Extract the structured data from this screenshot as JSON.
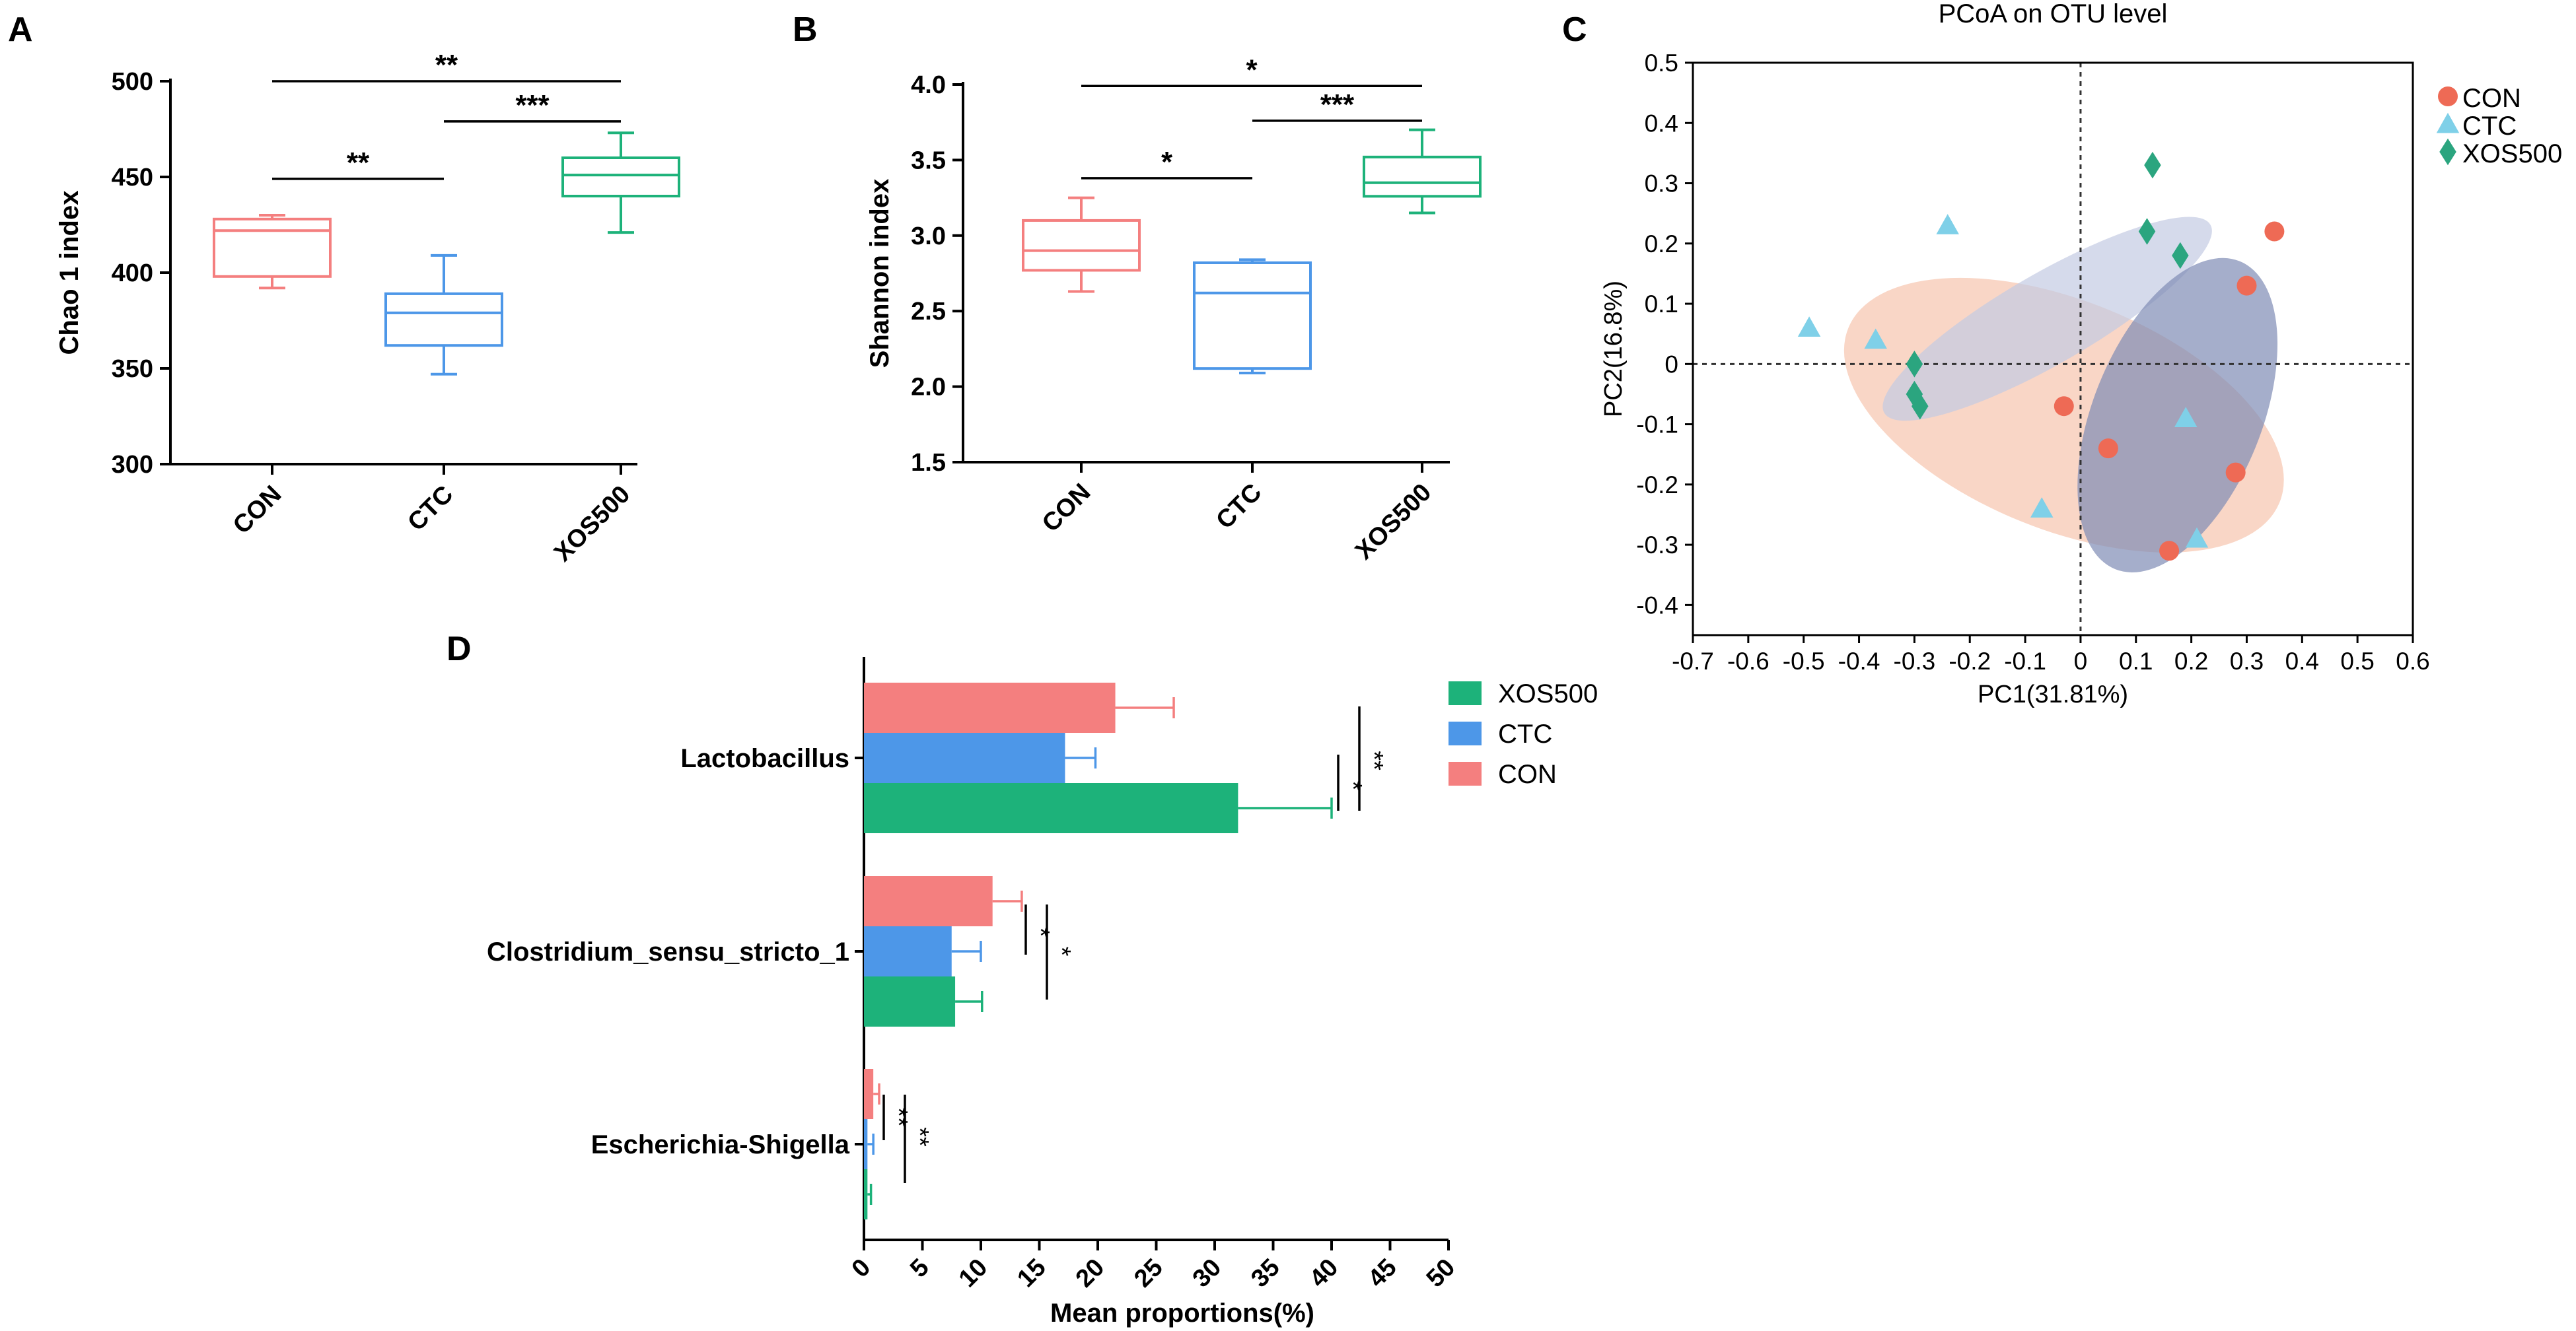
{
  "colors": {
    "con": "#F47F7F",
    "ctc": "#4D97E8",
    "xos": "#1DB27A",
    "con_point": "#EE6A55",
    "ctc_point": "#7FD0E8",
    "xos_point": "#2BA57F",
    "con_ellipse": "#F6C4AE",
    "ctc_ellipse": "#C3CAE2",
    "xos_ellipse": "#7F8CB5",
    "axis": "#000000"
  },
  "chart_data": [
    {
      "panel": "A",
      "type": "box",
      "title": "",
      "ylabel": "Chao 1 index",
      "categories": [
        "CON",
        "CTC",
        "XOS500"
      ],
      "ylim": [
        300,
        500
      ],
      "yticks": [
        300,
        350,
        400,
        450,
        500
      ],
      "boxes": [
        {
          "group": "CON",
          "min": 392,
          "q1": 398,
          "median": 422,
          "q3": 428,
          "max": 430
        },
        {
          "group": "CTC",
          "min": 347,
          "q1": 362,
          "median": 379,
          "q3": 389,
          "max": 409
        },
        {
          "group": "XOS500",
          "min": 421,
          "q1": 440,
          "median": 451,
          "q3": 460,
          "max": 473
        }
      ],
      "significance": [
        {
          "from": "CON",
          "to": "CTC",
          "label": "**",
          "y": 449
        },
        {
          "from": "CTC",
          "to": "XOS500",
          "label": "***",
          "y": 479
        },
        {
          "from": "CON",
          "to": "XOS500",
          "label": "**",
          "y": 500
        }
      ]
    },
    {
      "panel": "B",
      "type": "box",
      "title": "",
      "ylabel": "Shannon index",
      "categories": [
        "CON",
        "CTC",
        "XOS500"
      ],
      "ylim": [
        1.5,
        4.0
      ],
      "yticks": [
        "1.5",
        "2.0",
        "2.5",
        "3.0",
        "3.5",
        "4.0"
      ],
      "boxes": [
        {
          "group": "CON",
          "min": 2.63,
          "q1": 2.77,
          "median": 2.9,
          "q3": 3.1,
          "max": 3.25
        },
        {
          "group": "CTC",
          "min": 2.09,
          "q1": 2.12,
          "median": 2.62,
          "q3": 2.82,
          "max": 2.84
        },
        {
          "group": "XOS500",
          "min": 3.15,
          "q1": 3.26,
          "median": 3.35,
          "q3": 3.52,
          "max": 3.7
        }
      ],
      "significance": [
        {
          "from": "CON",
          "to": "CTC",
          "label": "*",
          "y": 3.38
        },
        {
          "from": "CTC",
          "to": "XOS500",
          "label": "***",
          "y": 3.76
        },
        {
          "from": "CON",
          "to": "XOS500",
          "label": "*",
          "y": 3.99
        }
      ]
    },
    {
      "panel": "C",
      "type": "scatter",
      "title": "PCoA on OTU level",
      "xlabel": "PC1(31.81%)",
      "ylabel": "PC2(16.8%)",
      "xlim": [
        -0.7,
        0.6
      ],
      "ylim": [
        -0.45,
        0.5
      ],
      "xticks": [
        "-0.7",
        "-0.6",
        "-0.5",
        "-0.4",
        "-0.3",
        "-0.2",
        "-0.1",
        "0",
        "0.1",
        "0.2",
        "0.3",
        "0.4",
        "0.5",
        "0.6"
      ],
      "yticks": [
        "-0.4",
        "-0.3",
        "-0.2",
        "-0.1",
        "0",
        "0.1",
        "0.2",
        "0.3",
        "0.4",
        "0.5"
      ],
      "legend": [
        "CON",
        "CTC",
        "XOS500"
      ],
      "legend_position": "top-right",
      "series": [
        {
          "name": "CON",
          "marker": "circle",
          "points": [
            [
              0.35,
              0.22
            ],
            [
              0.3,
              0.13
            ],
            [
              -0.03,
              -0.07
            ],
            [
              0.05,
              -0.14
            ],
            [
              0.28,
              -0.18
            ],
            [
              0.16,
              -0.31
            ]
          ]
        },
        {
          "name": "CTC",
          "marker": "triangle",
          "points": [
            [
              -0.24,
              0.23
            ],
            [
              -0.49,
              0.06
            ],
            [
              -0.37,
              0.04
            ],
            [
              0.19,
              -0.09
            ],
            [
              -0.07,
              -0.24
            ],
            [
              0.21,
              -0.29
            ]
          ]
        },
        {
          "name": "XOS500",
          "marker": "diamond",
          "points": [
            [
              0.13,
              0.33
            ],
            [
              0.12,
              0.22
            ],
            [
              0.18,
              0.18
            ],
            [
              -0.3,
              0.0
            ],
            [
              -0.3,
              -0.05
            ],
            [
              -0.29,
              -0.07
            ]
          ]
        }
      ],
      "ellipses": [
        {
          "group": "CON",
          "cx": -0.03,
          "cy": -0.085,
          "rx": 0.42,
          "ry": 0.19,
          "angle": -22
        },
        {
          "group": "CTC",
          "cx": -0.06,
          "cy": 0.075,
          "rx": 0.34,
          "ry": 0.075,
          "angle": 30
        },
        {
          "group": "XOS500",
          "cx": 0.175,
          "cy": -0.085,
          "rx": 0.3,
          "ry": 0.14,
          "angle": 68
        }
      ]
    },
    {
      "panel": "D",
      "type": "bar",
      "orientation": "horizontal",
      "xlabel": "Mean proportions(%)",
      "xlim": [
        0,
        50
      ],
      "xticks": [
        0,
        5,
        10,
        15,
        20,
        25,
        30,
        35,
        40,
        45,
        50
      ],
      "categories": [
        "Lactobacillus",
        "Clostridium_sensu_stricto_1",
        "Escherichia-Shigella"
      ],
      "legend": [
        "XOS500",
        "CTC",
        "CON"
      ],
      "legend_position": "top-right",
      "series": [
        {
          "name": "CON",
          "values": [
            21.5,
            11.0,
            0.8
          ],
          "errors": [
            5.0,
            2.5,
            0.5
          ]
        },
        {
          "name": "CTC",
          "values": [
            17.2,
            7.5,
            0.3
          ],
          "errors": [
            2.6,
            2.5,
            0.5
          ]
        },
        {
          "name": "XOS500",
          "values": [
            32.0,
            7.8,
            0.3
          ],
          "errors": [
            8.0,
            2.3,
            0.3
          ]
        }
      ],
      "significance": [
        {
          "category": "Lactobacillus",
          "pair": "CTC-XOS500",
          "label": "*"
        },
        {
          "category": "Lactobacillus",
          "pair": "CON-XOS500",
          "label": "**"
        },
        {
          "category": "Clostridium_sensu_stricto_1",
          "pair": "CON-CTC",
          "label": "*"
        },
        {
          "category": "Clostridium_sensu_stricto_1",
          "pair": "CON-XOS500",
          "label": "*"
        },
        {
          "category": "Escherichia-Shigella",
          "pair": "CON-CTC",
          "label": "**"
        },
        {
          "category": "Escherichia-Shigella",
          "pair": "CON-XOS500",
          "label": "**"
        }
      ]
    }
  ]
}
